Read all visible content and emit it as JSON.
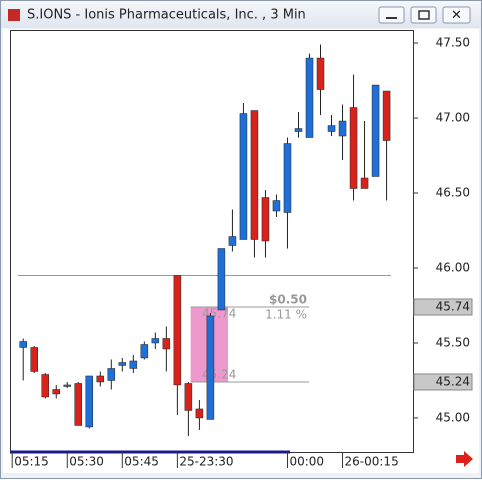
{
  "window_title": "S.IONS - Ionis Pharmaceuticals, Inc. , 3 Min",
  "chart_data": {
    "type": "candlestick",
    "x": [
      0,
      1,
      2,
      3,
      4,
      5,
      6,
      7,
      8,
      9,
      10,
      11,
      12,
      13,
      14,
      15,
      16,
      17,
      18,
      19,
      20,
      21,
      22,
      23,
      24,
      25,
      26,
      27,
      28,
      29,
      30,
      31,
      32,
      33
    ],
    "open": [
      45.47,
      45.47,
      45.29,
      45.19,
      45.21,
      45.23,
      44.94,
      45.28,
      45.25,
      45.35,
      45.33,
      45.4,
      45.5,
      45.53,
      45.95,
      45.23,
      45.06,
      44.99,
      45.72,
      46.15,
      46.19,
      47.05,
      46.47,
      46.38,
      46.37,
      46.91,
      46.87,
      47.4,
      46.91,
      46.88,
      47.07,
      46.6,
      46.61,
      47.18
    ],
    "high": [
      45.53,
      45.48,
      45.3,
      45.22,
      45.24,
      45.24,
      45.28,
      45.31,
      45.39,
      45.4,
      45.42,
      45.51,
      45.57,
      45.61,
      45.95,
      45.24,
      45.12,
      45.7,
      46.13,
      46.39,
      47.1,
      47.05,
      46.52,
      46.49,
      46.87,
      47.04,
      47.43,
      47.49,
      47.02,
      47.09,
      47.29,
      46.98,
      47.22,
      47.18
    ],
    "low": [
      45.25,
      45.3,
      45.13,
      45.13,
      45.2,
      44.95,
      44.93,
      45.21,
      45.19,
      45.31,
      45.3,
      45.39,
      45.46,
      45.31,
      45.02,
      44.88,
      44.92,
      44.99,
      45.72,
      46.11,
      46.19,
      46.07,
      46.07,
      46.34,
      46.13,
      46.87,
      46.87,
      47.02,
      46.88,
      46.72,
      46.45,
      46.53,
      46.61,
      46.45
    ],
    "close": [
      45.51,
      45.31,
      45.14,
      45.16,
      45.22,
      44.95,
      45.28,
      45.24,
      45.33,
      45.37,
      45.38,
      45.49,
      45.53,
      45.46,
      45.22,
      45.05,
      45.0,
      45.68,
      46.13,
      46.21,
      47.03,
      46.19,
      46.18,
      46.45,
      46.83,
      46.93,
      47.4,
      47.19,
      46.95,
      46.98,
      46.53,
      46.53,
      47.22,
      46.85
    ],
    "up_color": "#1f6fd6",
    "down_color": "#d8221c",
    "xlim": [
      -1.2,
      35.4
    ],
    "xticks": [
      {
        "value": -1,
        "label": "05:15"
      },
      {
        "value": 4,
        "label": "05:30"
      },
      {
        "value": 9,
        "label": "05:45"
      },
      {
        "value": 14,
        "label": "25-23:30"
      },
      {
        "value": 24,
        "label": "00:00"
      },
      {
        "value": 29,
        "label": "26-00:15"
      }
    ],
    "ylim": [
      44.773,
      47.587
    ],
    "yticks": [
      {
        "value": 45,
        "label": "45.00"
      },
      {
        "value": 45.5,
        "label": "45.50"
      },
      {
        "value": 46,
        "label": "46.00"
      },
      {
        "value": 46.5,
        "label": "46.50"
      },
      {
        "value": 47,
        "label": "47.00"
      },
      {
        "value": 47.5,
        "label": "47.50"
      }
    ],
    "hline": 45.95,
    "measure": {
      "high": 45.74,
      "low": 45.24,
      "change": "$0.50",
      "percent": "1.11 %"
    }
  }
}
